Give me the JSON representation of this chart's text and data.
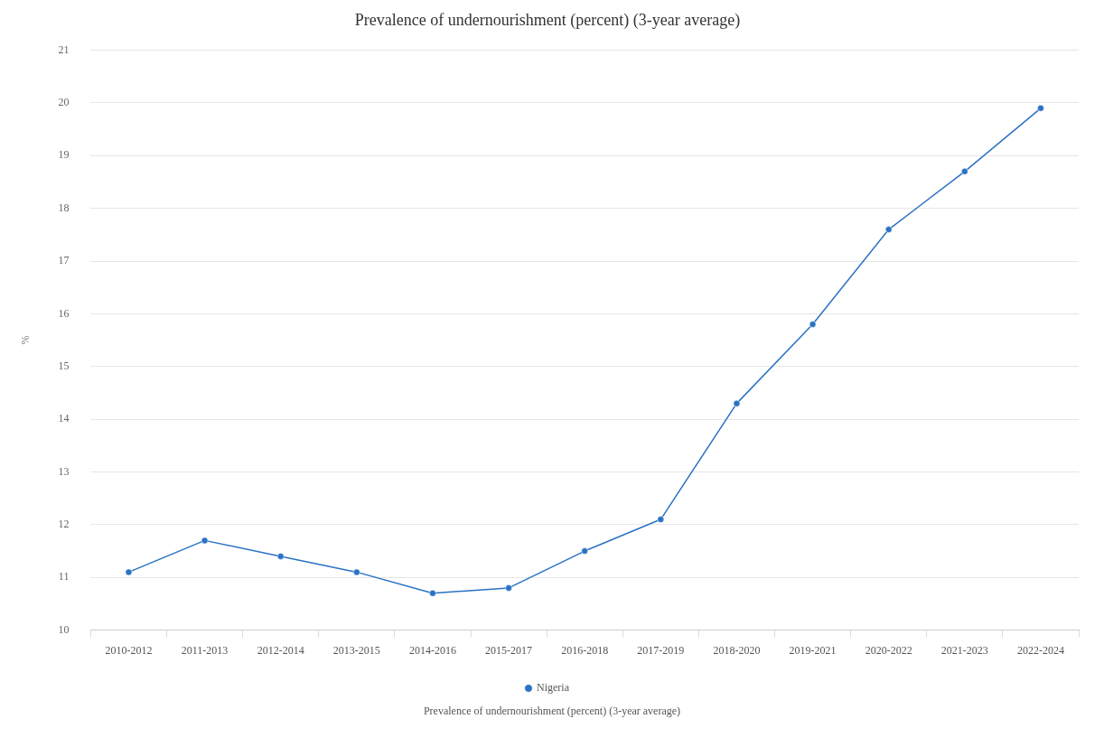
{
  "chart_data": {
    "type": "line",
    "title": "Prevalence of undernourishment (percent) (3-year average)",
    "ylabel": "%",
    "categories": [
      "2010-2012",
      "2011-2013",
      "2012-2014",
      "2013-2015",
      "2014-2016",
      "2015-2017",
      "2016-2018",
      "2017-2019",
      "2018-2020",
      "2019-2021",
      "2020-2022",
      "2021-2023",
      "2022-2024"
    ],
    "series": [
      {
        "name": "Nigeria",
        "color": "#2a72c4",
        "values": [
          11.1,
          11.7,
          11.4,
          11.1,
          10.7,
          10.8,
          11.5,
          12.1,
          14.3,
          15.8,
          17.6,
          18.7,
          19.9
        ]
      }
    ],
    "ylim": [
      10,
      21
    ],
    "yticks": [
      10,
      11,
      12,
      13,
      14,
      15,
      16,
      17,
      18,
      19,
      20,
      21
    ],
    "grid": "y",
    "legend": "bottom",
    "marker": "circle",
    "line_style": "solid",
    "annotations": [
      "Prevalence of undernourishment (percent) (3-year average)"
    ]
  }
}
